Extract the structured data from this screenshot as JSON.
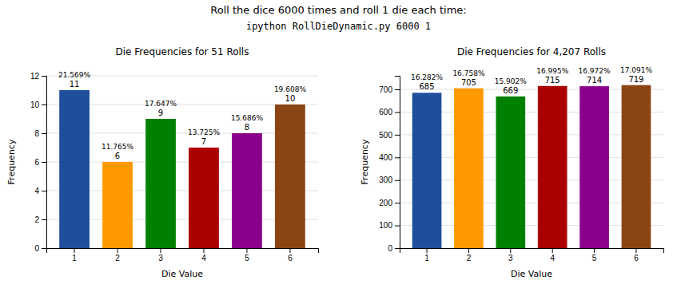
{
  "title": "Roll the dice 6000 times and roll 1 die each time:",
  "subtitle": "ipython RollDieDynamic.py 6000 1",
  "chart_data": [
    {
      "type": "bar",
      "title": "Die Frequencies for 51 Rolls",
      "xlabel": "Die Value",
      "ylabel": "Frequency",
      "categories": [
        1,
        2,
        3,
        4,
        5,
        6
      ],
      "values": [
        11,
        6,
        9,
        7,
        8,
        10
      ],
      "annotations": [
        "21.569%",
        "11.765%",
        "17.647%",
        "13.725%",
        "15.686%",
        "19.608%"
      ],
      "colors": [
        "#1f4e9c",
        "#ff9900",
        "#008000",
        "#aa0000",
        "#8b008b",
        "#8b4513"
      ],
      "ylim": [
        0,
        12
      ],
      "yticks": [
        0,
        2,
        4,
        6,
        8,
        10,
        12
      ],
      "grid": true,
      "data_labels": true
    },
    {
      "type": "bar",
      "title": "Die Frequencies for 4,207 Rolls",
      "xlabel": "Die Value",
      "ylabel": "Frequency",
      "categories": [
        1,
        2,
        3,
        4,
        5,
        6
      ],
      "values": [
        685,
        705,
        669,
        715,
        714,
        719
      ],
      "annotations": [
        "16.282%",
        "16.758%",
        "15.902%",
        "16.995%",
        "16.972%",
        "17.091%"
      ],
      "colors": [
        "#1f4e9c",
        "#ff9900",
        "#008000",
        "#aa0000",
        "#8b008b",
        "#8b4513"
      ],
      "ylim": [
        0,
        760
      ],
      "yticks": [
        0,
        100,
        200,
        300,
        400,
        500,
        600,
        700
      ],
      "grid": true,
      "data_labels": true
    }
  ]
}
